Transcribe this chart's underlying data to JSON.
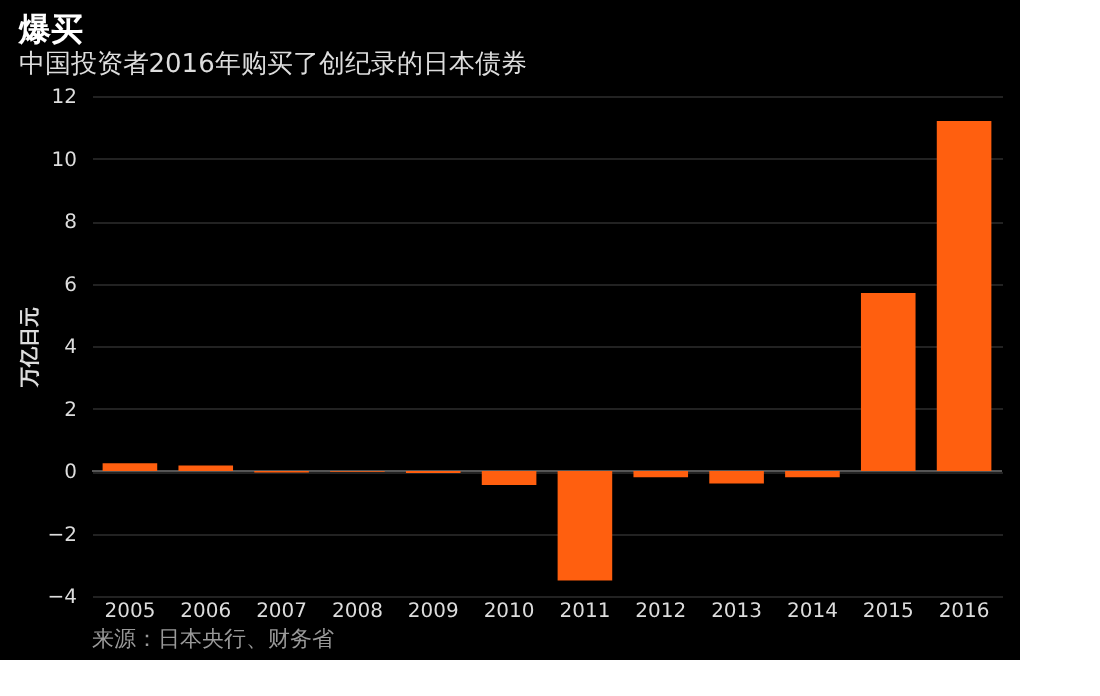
{
  "chart_data": {
    "type": "bar",
    "title": "爆买",
    "subtitle": "中国投资者2016年购买了创纪录的日本债券",
    "ylabel": "万亿日元",
    "categories": [
      "2005",
      "2006",
      "2007",
      "2008",
      "2009",
      "2010",
      "2011",
      "2012",
      "2013",
      "2014",
      "2015",
      "2016"
    ],
    "values": [
      0.25,
      0.18,
      -0.05,
      -0.02,
      -0.06,
      -0.45,
      -3.5,
      -0.2,
      -0.4,
      -0.2,
      5.7,
      11.2
    ],
    "color": "#ff5f0f",
    "ylim": [
      -4,
      12
    ],
    "yticks": [
      -4,
      -2,
      0,
      2,
      4,
      6,
      8,
      10,
      12
    ],
    "grid": "y",
    "annotations": [
      "来源：日本央行、财务省"
    ]
  }
}
